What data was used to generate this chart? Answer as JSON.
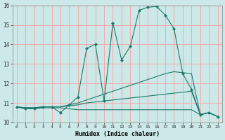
{
  "xlabel": "Humidex (Indice chaleur)",
  "bg_color": "#cce8e8",
  "grid_color": "#f5aaaa",
  "line_color": "#1a7a6a",
  "xlim": [
    -0.5,
    23.5
  ],
  "ylim": [
    10.0,
    16.0
  ],
  "yticks": [
    10,
    11,
    12,
    13,
    14,
    15,
    16
  ],
  "xticks": [
    0,
    1,
    2,
    3,
    4,
    5,
    6,
    7,
    8,
    9,
    10,
    11,
    12,
    13,
    14,
    15,
    16,
    17,
    18,
    19,
    20,
    21,
    22,
    23
  ],
  "series": [
    {
      "x": [
        0,
        1,
        2,
        3,
        4,
        5,
        6,
        7,
        8,
        9,
        10,
        11,
        12,
        13,
        14,
        15,
        16,
        17,
        18,
        19,
        20,
        21,
        22,
        23
      ],
      "y": [
        10.8,
        10.7,
        10.7,
        10.8,
        10.8,
        10.5,
        10.9,
        11.3,
        13.8,
        14.0,
        11.1,
        15.1,
        13.2,
        13.9,
        15.75,
        15.9,
        15.95,
        15.5,
        14.8,
        12.5,
        11.7,
        10.4,
        10.5,
        10.3
      ],
      "marker": "D",
      "markersize": 2.0,
      "linewidth": 0.8,
      "linestyle": "-"
    },
    {
      "x": [
        0,
        1,
        2,
        3,
        4,
        5,
        6,
        7,
        8,
        9,
        10,
        11,
        12,
        13,
        14,
        15,
        16,
        17,
        18,
        19,
        20,
        21,
        22,
        23
      ],
      "y": [
        10.8,
        10.75,
        10.75,
        10.8,
        10.8,
        10.8,
        10.9,
        11.0,
        11.15,
        11.3,
        11.45,
        11.6,
        11.75,
        11.9,
        12.05,
        12.2,
        12.35,
        12.5,
        12.6,
        12.55,
        12.5,
        10.4,
        10.5,
        10.3
      ],
      "marker": null,
      "markersize": 0,
      "linewidth": 0.8,
      "linestyle": "-"
    },
    {
      "x": [
        0,
        1,
        2,
        3,
        4,
        5,
        6,
        7,
        8,
        9,
        10,
        11,
        12,
        13,
        14,
        15,
        16,
        17,
        18,
        19,
        20,
        21,
        22,
        23
      ],
      "y": [
        10.8,
        10.75,
        10.75,
        10.8,
        10.8,
        10.8,
        10.85,
        10.9,
        11.0,
        11.05,
        11.1,
        11.15,
        11.2,
        11.25,
        11.3,
        11.35,
        11.4,
        11.45,
        11.5,
        11.55,
        11.6,
        10.4,
        10.5,
        10.3
      ],
      "marker": null,
      "markersize": 0,
      "linewidth": 0.8,
      "linestyle": "-"
    },
    {
      "x": [
        0,
        1,
        2,
        3,
        4,
        5,
        6,
        7,
        8,
        9,
        10,
        11,
        12,
        13,
        14,
        15,
        16,
        17,
        18,
        19,
        20,
        21,
        22,
        23
      ],
      "y": [
        10.8,
        10.7,
        10.7,
        10.75,
        10.75,
        10.75,
        10.7,
        10.65,
        10.65,
        10.65,
        10.65,
        10.65,
        10.65,
        10.65,
        10.65,
        10.65,
        10.65,
        10.65,
        10.65,
        10.65,
        10.65,
        10.4,
        10.5,
        10.3
      ],
      "marker": null,
      "markersize": 0,
      "linewidth": 0.8,
      "linestyle": "-"
    }
  ]
}
